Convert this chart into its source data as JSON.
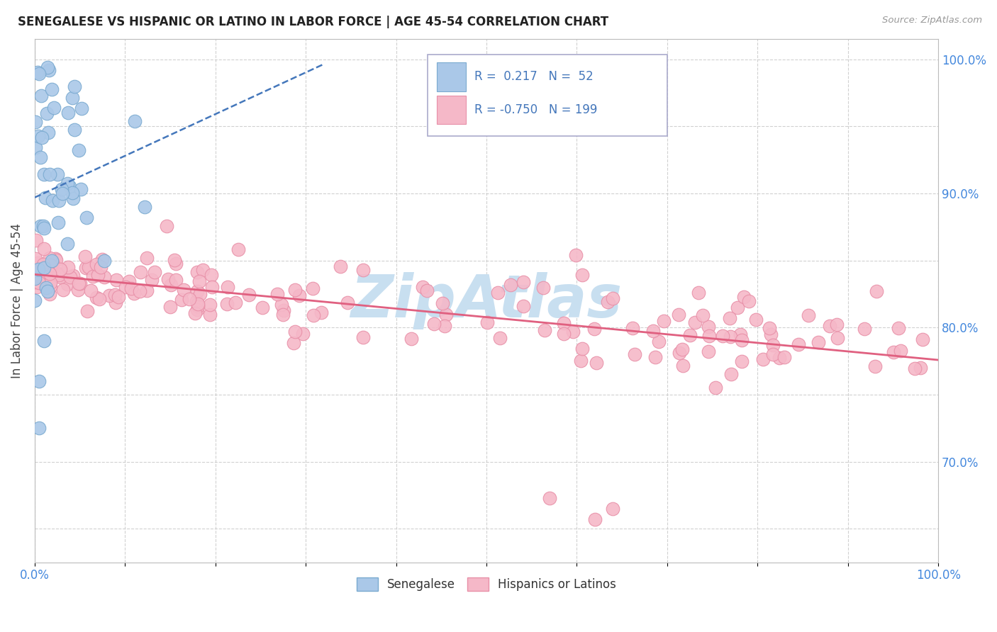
{
  "title": "SENEGALESE VS HISPANIC OR LATINO IN LABOR FORCE | AGE 45-54 CORRELATION CHART",
  "source": "Source: ZipAtlas.com",
  "ylabel": "In Labor Force | Age 45-54",
  "xlim": [
    0.0,
    1.0
  ],
  "ylim": [
    0.625,
    1.015
  ],
  "r_blue": 0.217,
  "n_blue": 52,
  "r_pink": -0.75,
  "n_pink": 199,
  "blue_color": "#aac8e8",
  "pink_color": "#f5b8c8",
  "blue_edge": "#7aaad0",
  "pink_edge": "#e890a8",
  "blue_line_color": "#4477bb",
  "pink_line_color": "#e06080",
  "legend_blue_label": "Senegalese",
  "legend_pink_label": "Hispanics or Latinos",
  "background_color": "#ffffff",
  "grid_color": "#cccccc",
  "title_color": "#222222",
  "axis_label_color": "#444444",
  "tick_label_color": "#4488dd",
  "watermark_color": "#c8dff0"
}
